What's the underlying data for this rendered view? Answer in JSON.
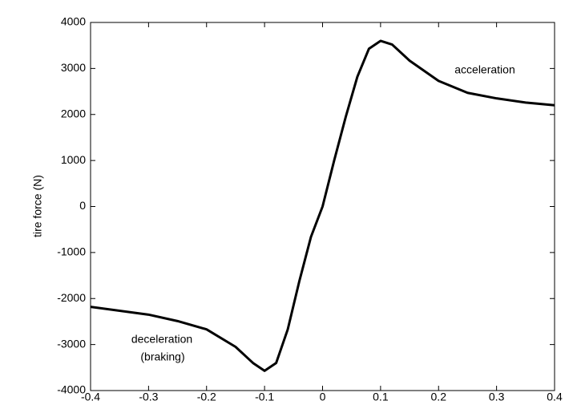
{
  "chart_data": {
    "type": "line",
    "y_label": "tire force (N)",
    "x": [
      -0.4,
      -0.3,
      -0.25,
      -0.2,
      -0.15,
      -0.12,
      -0.1,
      -0.08,
      -0.06,
      -0.04,
      -0.02,
      0,
      0.02,
      0.04,
      0.06,
      0.08,
      0.1,
      0.12,
      0.15,
      0.2,
      0.25,
      0.3,
      0.35,
      0.4
    ],
    "series": [
      {
        "color": "#000000",
        "values": [
          -2180,
          -2350,
          -2490,
          -2670,
          -3050,
          -3400,
          -3570,
          -3400,
          -2670,
          -1620,
          -660,
          0,
          1000,
          1950,
          2820,
          3430,
          3600,
          3520,
          3170,
          2730,
          2470,
          2350,
          2260,
          2200
        ]
      }
    ],
    "xlim": [
      -0.4,
      0.4
    ],
    "xticks": [
      -0.4,
      -0.3,
      -0.2,
      -0.1,
      0,
      0.1,
      0.2,
      0.3,
      0.4
    ],
    "ylim": [
      -4000,
      4000
    ],
    "yticks": [
      -4000,
      -3000,
      -2000,
      -1000,
      0,
      1000,
      2000,
      3000,
      4000
    ],
    "grid": false,
    "annotations": [
      "acceleration",
      "deceleration",
      "(braking)"
    ]
  }
}
